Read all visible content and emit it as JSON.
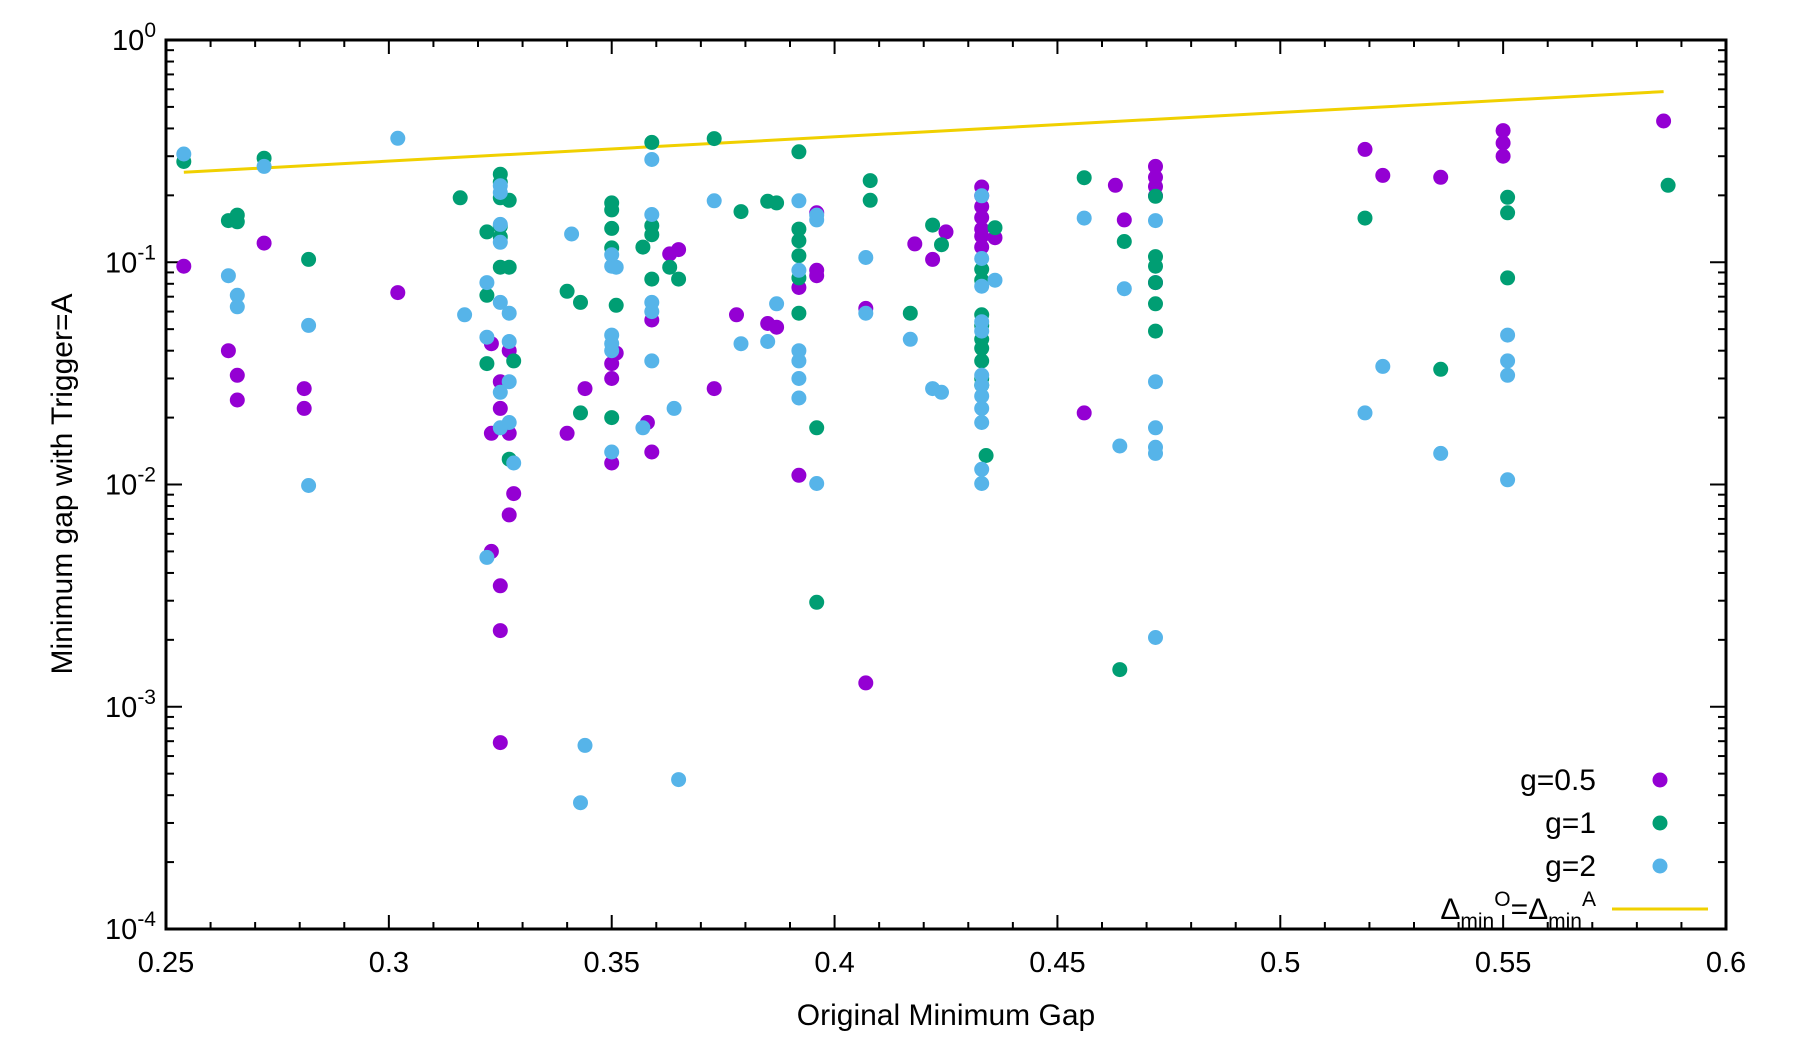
{
  "chart_data": {
    "type": "scatter",
    "xlabel": "Original Minimum Gap",
    "ylabel": "Minimum gap with Trigger=A",
    "xlim": [
      0.25,
      0.6
    ],
    "ylim": [
      0.0001,
      1
    ],
    "yscale": "log",
    "grid": false,
    "legend_position": "bottom-right",
    "x_ticks": [
      "0.25",
      "0.3",
      "0.35",
      "0.4",
      "0.45",
      "0.5",
      "0.55",
      "0.6"
    ],
    "y_ticks": [
      {
        "base": "10",
        "exp": "-4"
      },
      {
        "base": "10",
        "exp": "-3"
      },
      {
        "base": "10",
        "exp": "-2"
      },
      {
        "base": "10",
        "exp": "-1"
      },
      {
        "base": "10",
        "exp": "0"
      }
    ],
    "colors": {
      "g05": "#9400D3",
      "g1": "#009E73",
      "g2": "#56B4E9",
      "line": "#F0D000"
    },
    "series": [
      {
        "name": "g=0.5",
        "color": "#9400D3",
        "points": [
          [
            0.254,
            0.096
          ],
          [
            0.264,
            0.04
          ],
          [
            0.266,
            0.031
          ],
          [
            0.266,
            0.024
          ],
          [
            0.272,
            0.122
          ],
          [
            0.281,
            0.027
          ],
          [
            0.281,
            0.022
          ],
          [
            0.302,
            0.073
          ],
          [
            0.323,
            0.043
          ],
          [
            0.323,
            0.017
          ],
          [
            0.323,
            0.005
          ],
          [
            0.325,
            0.029
          ],
          [
            0.325,
            0.022
          ],
          [
            0.325,
            0.0035
          ],
          [
            0.325,
            0.0022
          ],
          [
            0.325,
            0.00069
          ],
          [
            0.327,
            0.04
          ],
          [
            0.327,
            0.017
          ],
          [
            0.327,
            0.0073
          ],
          [
            0.328,
            0.0091
          ],
          [
            0.34,
            0.017
          ],
          [
            0.344,
            0.027
          ],
          [
            0.35,
            0.03
          ],
          [
            0.35,
            0.035
          ],
          [
            0.35,
            0.0125
          ],
          [
            0.351,
            0.039
          ],
          [
            0.358,
            0.019
          ],
          [
            0.359,
            0.014
          ],
          [
            0.359,
            0.055
          ],
          [
            0.363,
            0.109
          ],
          [
            0.365,
            0.114
          ],
          [
            0.373,
            0.027
          ],
          [
            0.378,
            0.058
          ],
          [
            0.385,
            0.053
          ],
          [
            0.387,
            0.051
          ],
          [
            0.392,
            0.077
          ],
          [
            0.392,
            0.011
          ],
          [
            0.396,
            0.092
          ],
          [
            0.396,
            0.087
          ],
          [
            0.396,
            0.167
          ],
          [
            0.407,
            0.062
          ],
          [
            0.407,
            0.00128
          ],
          [
            0.418,
            0.121
          ],
          [
            0.422,
            0.103
          ],
          [
            0.425,
            0.137
          ],
          [
            0.433,
            0.218
          ],
          [
            0.433,
            0.199
          ],
          [
            0.433,
            0.178
          ],
          [
            0.433,
            0.159
          ],
          [
            0.433,
            0.141
          ],
          [
            0.433,
            0.131
          ],
          [
            0.433,
            0.117
          ],
          [
            0.436,
            0.129
          ],
          [
            0.456,
            0.021
          ],
          [
            0.463,
            0.222
          ],
          [
            0.465,
            0.155
          ],
          [
            0.472,
            0.27
          ],
          [
            0.472,
            0.241
          ],
          [
            0.472,
            0.219
          ],
          [
            0.472,
            0.199
          ],
          [
            0.472,
            0.081
          ],
          [
            0.519,
            0.322
          ],
          [
            0.523,
            0.246
          ],
          [
            0.536,
            0.241
          ],
          [
            0.55,
            0.391
          ],
          [
            0.55,
            0.344
          ],
          [
            0.55,
            0.3
          ],
          [
            0.586,
            0.432
          ]
        ]
      },
      {
        "name": "g=1",
        "color": "#009E73",
        "points": [
          [
            0.254,
            0.284
          ],
          [
            0.264,
            0.154
          ],
          [
            0.266,
            0.163
          ],
          [
            0.266,
            0.152
          ],
          [
            0.272,
            0.294
          ],
          [
            0.282,
            0.103
          ],
          [
            0.316,
            0.195
          ],
          [
            0.322,
            0.137
          ],
          [
            0.322,
            0.071
          ],
          [
            0.322,
            0.035
          ],
          [
            0.325,
            0.249
          ],
          [
            0.325,
            0.229
          ],
          [
            0.325,
            0.195
          ],
          [
            0.325,
            0.145
          ],
          [
            0.325,
            0.13
          ],
          [
            0.325,
            0.095
          ],
          [
            0.327,
            0.19
          ],
          [
            0.327,
            0.095
          ],
          [
            0.327,
            0.013
          ],
          [
            0.328,
            0.036
          ],
          [
            0.34,
            0.074
          ],
          [
            0.343,
            0.066
          ],
          [
            0.343,
            0.021
          ],
          [
            0.35,
            0.185
          ],
          [
            0.35,
            0.172
          ],
          [
            0.35,
            0.142
          ],
          [
            0.35,
            0.116
          ],
          [
            0.35,
            0.02
          ],
          [
            0.351,
            0.064
          ],
          [
            0.357,
            0.117
          ],
          [
            0.359,
            0.346
          ],
          [
            0.359,
            0.146
          ],
          [
            0.359,
            0.133
          ],
          [
            0.359,
            0.084
          ],
          [
            0.363,
            0.095
          ],
          [
            0.365,
            0.084
          ],
          [
            0.373,
            0.36
          ],
          [
            0.379,
            0.169
          ],
          [
            0.385,
            0.188
          ],
          [
            0.387,
            0.185
          ],
          [
            0.392,
            0.314
          ],
          [
            0.392,
            0.141
          ],
          [
            0.392,
            0.125
          ],
          [
            0.392,
            0.107
          ],
          [
            0.392,
            0.085
          ],
          [
            0.392,
            0.059
          ],
          [
            0.396,
            0.018
          ],
          [
            0.396,
            0.00295
          ],
          [
            0.408,
            0.233
          ],
          [
            0.408,
            0.19
          ],
          [
            0.417,
            0.059
          ],
          [
            0.422,
            0.147
          ],
          [
            0.424,
            0.12
          ],
          [
            0.433,
            0.093
          ],
          [
            0.433,
            0.083
          ],
          [
            0.433,
            0.058
          ],
          [
            0.433,
            0.052
          ],
          [
            0.433,
            0.045
          ],
          [
            0.433,
            0.041
          ],
          [
            0.433,
            0.036
          ],
          [
            0.433,
            0.03
          ],
          [
            0.433,
            0.028
          ],
          [
            0.434,
            0.0135
          ],
          [
            0.436,
            0.143
          ],
          [
            0.456,
            0.24
          ],
          [
            0.464,
            0.00147
          ],
          [
            0.465,
            0.124
          ],
          [
            0.472,
            0.198
          ],
          [
            0.472,
            0.106
          ],
          [
            0.472,
            0.096
          ],
          [
            0.472,
            0.081
          ],
          [
            0.472,
            0.065
          ],
          [
            0.472,
            0.049
          ],
          [
            0.519,
            0.158
          ],
          [
            0.536,
            0.033
          ],
          [
            0.551,
            0.196
          ],
          [
            0.551,
            0.167
          ],
          [
            0.551,
            0.085
          ],
          [
            0.587,
            0.222
          ]
        ]
      },
      {
        "name": "g=2",
        "color": "#56B4E9",
        "points": [
          [
            0.254,
            0.307
          ],
          [
            0.264,
            0.087
          ],
          [
            0.266,
            0.071
          ],
          [
            0.266,
            0.063
          ],
          [
            0.272,
            0.27
          ],
          [
            0.282,
            0.052
          ],
          [
            0.282,
            0.0099
          ],
          [
            0.302,
            0.361
          ],
          [
            0.317,
            0.058
          ],
          [
            0.322,
            0.081
          ],
          [
            0.322,
            0.046
          ],
          [
            0.322,
            0.0047
          ],
          [
            0.325,
            0.221
          ],
          [
            0.325,
            0.206
          ],
          [
            0.325,
            0.148
          ],
          [
            0.325,
            0.123
          ],
          [
            0.325,
            0.066
          ],
          [
            0.325,
            0.026
          ],
          [
            0.325,
            0.018
          ],
          [
            0.327,
            0.059
          ],
          [
            0.327,
            0.044
          ],
          [
            0.327,
            0.029
          ],
          [
            0.327,
            0.019
          ],
          [
            0.328,
            0.0125
          ],
          [
            0.341,
            0.134
          ],
          [
            0.343,
            0.00037
          ],
          [
            0.344,
            0.00067
          ],
          [
            0.35,
            0.108
          ],
          [
            0.35,
            0.096
          ],
          [
            0.35,
            0.047
          ],
          [
            0.35,
            0.043
          ],
          [
            0.35,
            0.04
          ],
          [
            0.35,
            0.014
          ],
          [
            0.351,
            0.095
          ],
          [
            0.357,
            0.018
          ],
          [
            0.359,
            0.29
          ],
          [
            0.359,
            0.164
          ],
          [
            0.359,
            0.066
          ],
          [
            0.359,
            0.06
          ],
          [
            0.359,
            0.036
          ],
          [
            0.364,
            0.022
          ],
          [
            0.365,
            0.00047
          ],
          [
            0.373,
            0.189
          ],
          [
            0.379,
            0.043
          ],
          [
            0.385,
            0.044
          ],
          [
            0.387,
            0.065
          ],
          [
            0.392,
            0.189
          ],
          [
            0.392,
            0.092
          ],
          [
            0.392,
            0.04
          ],
          [
            0.392,
            0.036
          ],
          [
            0.392,
            0.03
          ],
          [
            0.392,
            0.0245
          ],
          [
            0.396,
            0.163
          ],
          [
            0.396,
            0.155
          ],
          [
            0.396,
            0.0101
          ],
          [
            0.407,
            0.105
          ],
          [
            0.407,
            0.059
          ],
          [
            0.417,
            0.045
          ],
          [
            0.422,
            0.027
          ],
          [
            0.424,
            0.026
          ],
          [
            0.433,
            0.199
          ],
          [
            0.433,
            0.104
          ],
          [
            0.433,
            0.078
          ],
          [
            0.433,
            0.054
          ],
          [
            0.433,
            0.049
          ],
          [
            0.433,
            0.031
          ],
          [
            0.433,
            0.028
          ],
          [
            0.433,
            0.025
          ],
          [
            0.433,
            0.022
          ],
          [
            0.433,
            0.019
          ],
          [
            0.433,
            0.0117
          ],
          [
            0.433,
            0.0101
          ],
          [
            0.436,
            0.083
          ],
          [
            0.456,
            0.158
          ],
          [
            0.464,
            0.0149
          ],
          [
            0.465,
            0.076
          ],
          [
            0.472,
            0.154
          ],
          [
            0.472,
            0.029
          ],
          [
            0.472,
            0.018
          ],
          [
            0.472,
            0.0147
          ],
          [
            0.472,
            0.0138
          ],
          [
            0.472,
            0.00205
          ],
          [
            0.519,
            0.021
          ],
          [
            0.523,
            0.034
          ],
          [
            0.536,
            0.0138
          ],
          [
            0.551,
            0.047
          ],
          [
            0.551,
            0.036
          ],
          [
            0.551,
            0.031
          ],
          [
            0.551,
            0.0105
          ]
        ]
      }
    ],
    "reference_line": {
      "name_parts": [
        "Δ",
        "min",
        "O",
        "=Δ",
        "min",
        "A"
      ],
      "color": "#F0D000",
      "points": [
        [
          0.254,
          0.254
        ],
        [
          0.586,
          0.586
        ]
      ]
    }
  }
}
